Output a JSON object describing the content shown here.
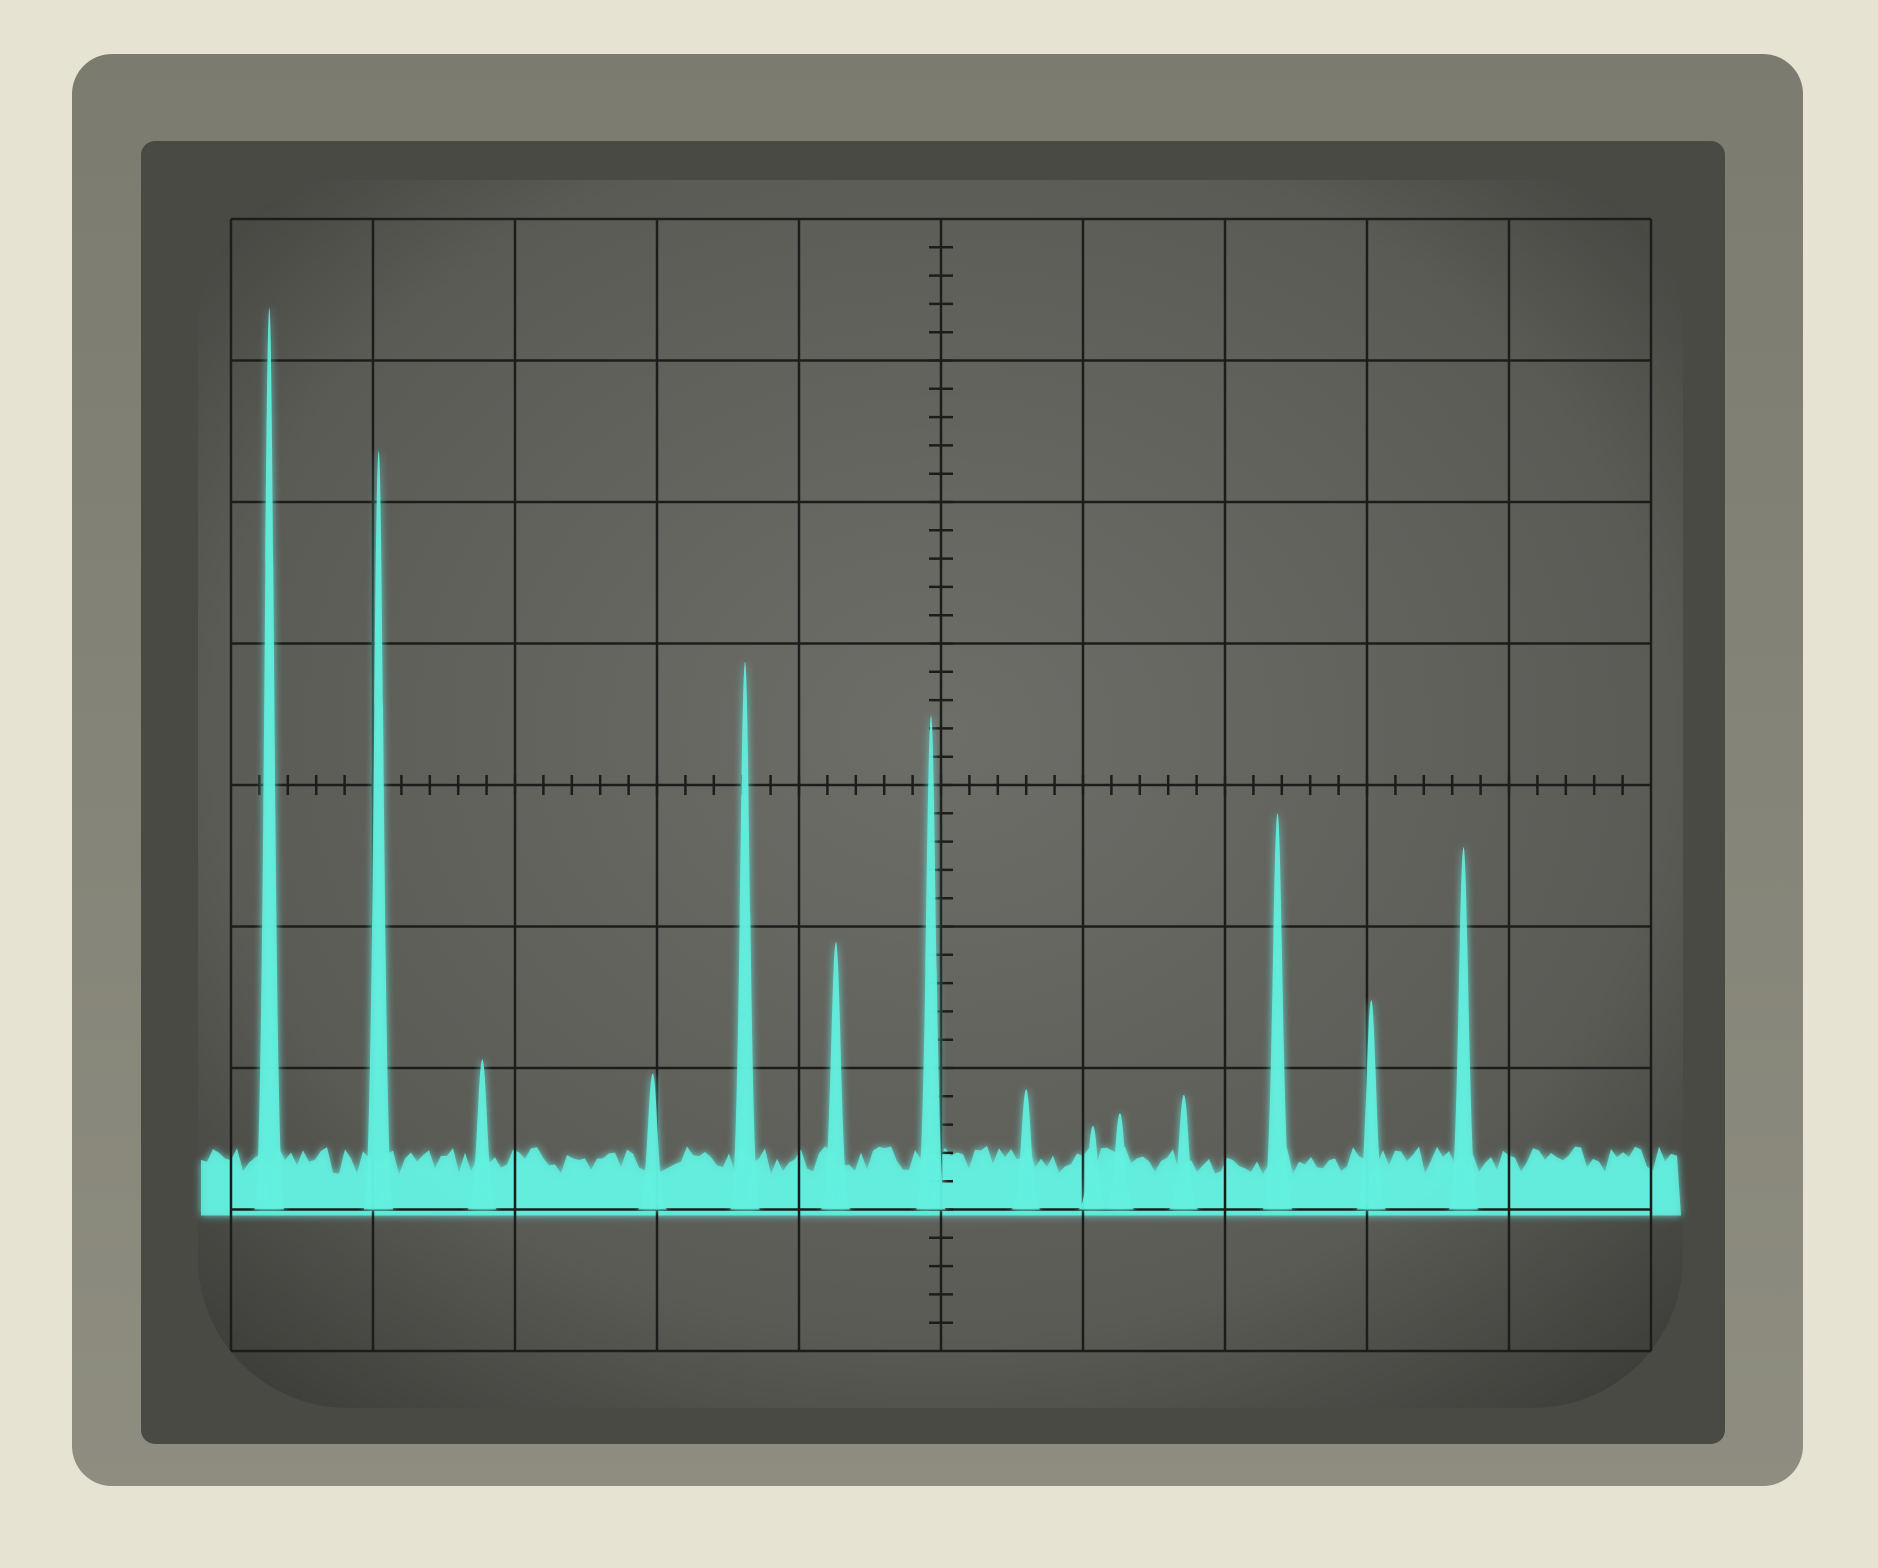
{
  "chart_data": {
    "type": "spectrum",
    "x": [
      0.27,
      1.04,
      1.77,
      2.97,
      3.62,
      4.26,
      4.93,
      5.6,
      6.07,
      6.26,
      6.71,
      7.37,
      8.03,
      8.68
    ],
    "values": [
      7.37,
      6.36,
      2.06,
      1.96,
      4.87,
      2.89,
      4.49,
      1.85,
      1.59,
      1.68,
      1.81,
      3.8,
      2.48,
      3.56
    ],
    "floor": 1.0,
    "noise_top": 1.45,
    "xlim": [
      0,
      10
    ],
    "ylim": [
      0,
      8
    ],
    "xticks": [
      0,
      1,
      2,
      3,
      4,
      5,
      6,
      7,
      8,
      9,
      10
    ],
    "yticks": [
      0,
      1,
      2,
      3,
      4,
      5,
      6,
      7,
      8
    ],
    "grid": true,
    "color": "#63f0df"
  }
}
